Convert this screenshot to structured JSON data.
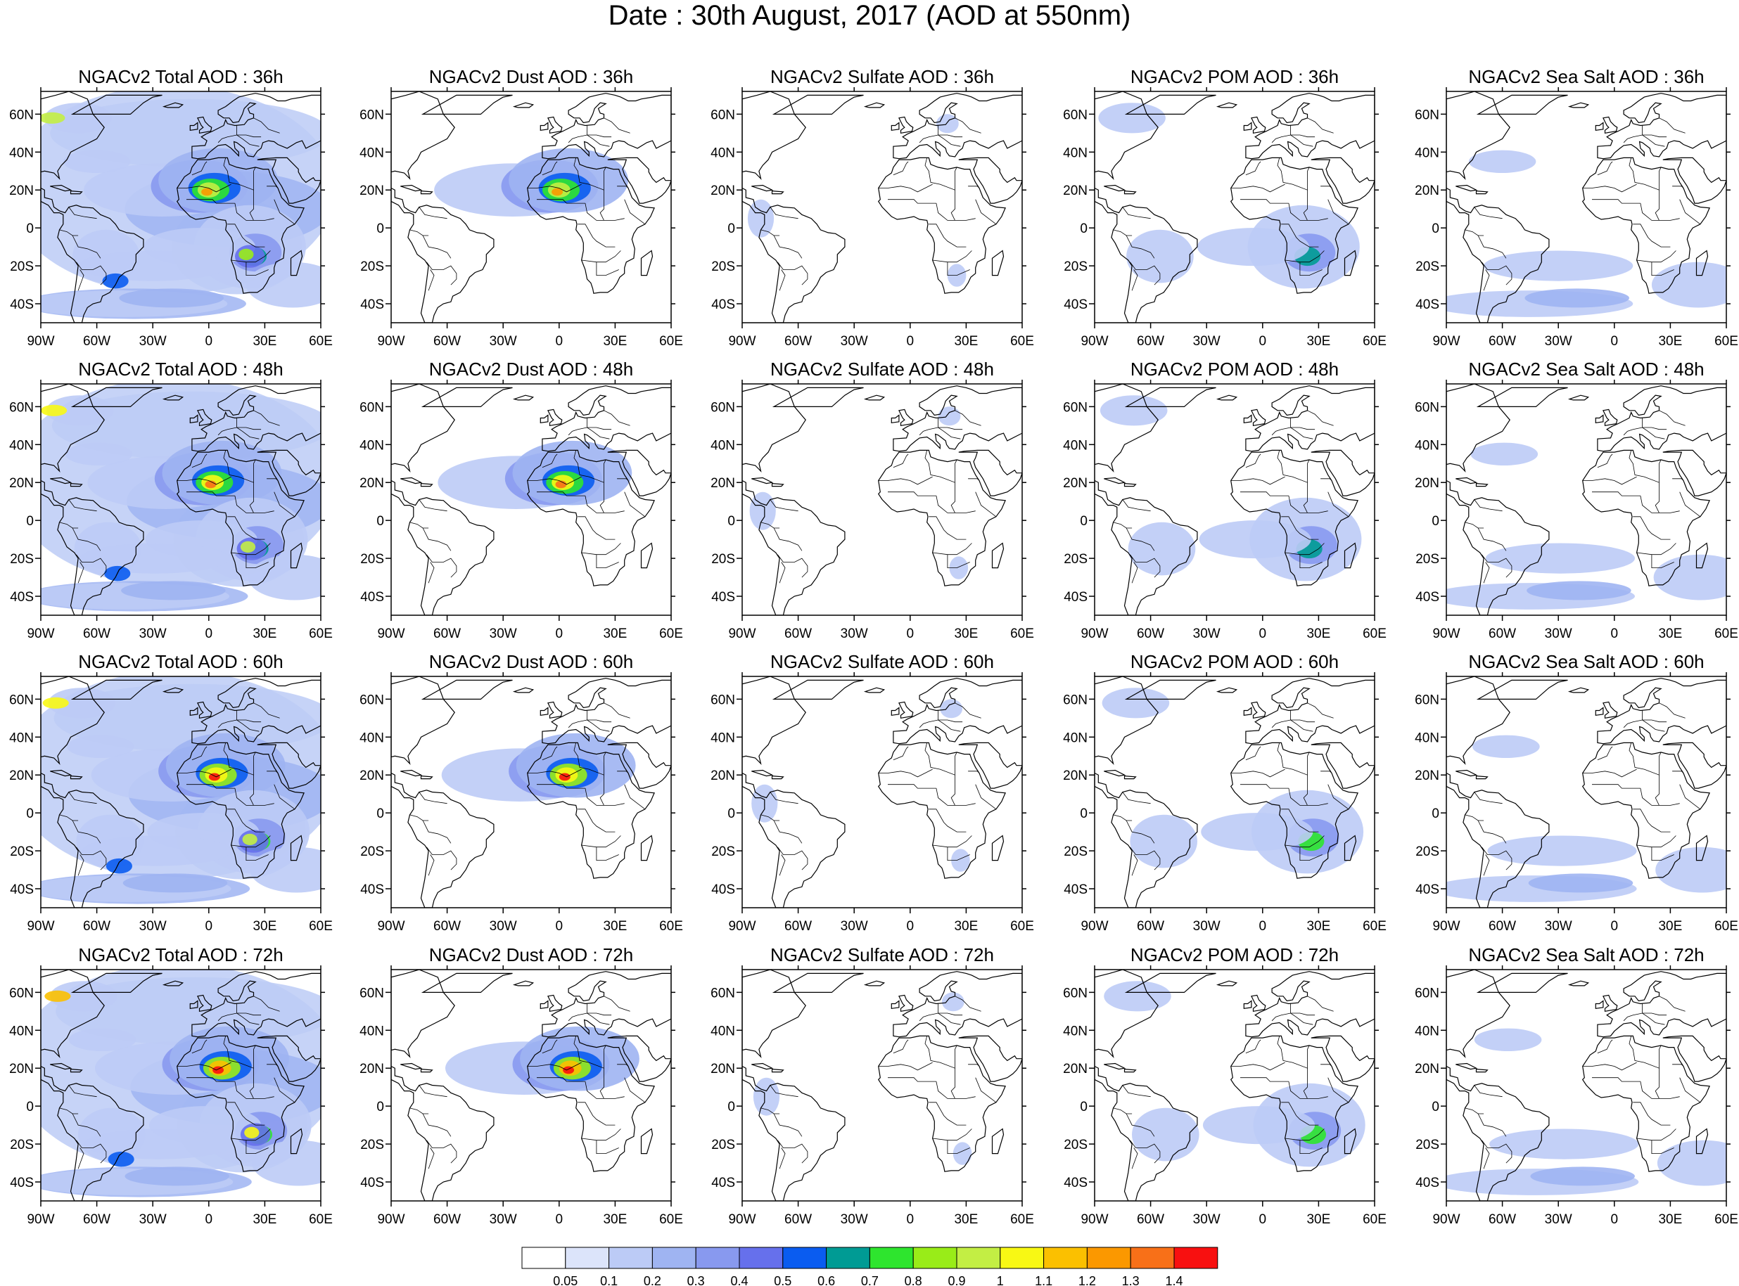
{
  "title": "Date : 30th August, 2017 (AOD at 550nm)",
  "lon_ticks": [
    "90W",
    "60W",
    "30W",
    "0",
    "30E",
    "60E"
  ],
  "lat_ticks": [
    "60N",
    "40N",
    "20N",
    "0",
    "20S",
    "40S"
  ],
  "colorbar": {
    "labels": [
      "0.05",
      "0.1",
      "0.2",
      "0.3",
      "0.4",
      "0.5",
      "0.6",
      "0.7",
      "0.8",
      "0.9",
      "1",
      "1.1",
      "1.2",
      "1.3",
      "1.4"
    ],
    "colors": [
      "#ffffff",
      "#dce4fa",
      "#bccbf6",
      "#9fb4f2",
      "#8899ef",
      "#6670ec",
      "#0a5cf0",
      "#009b94",
      "#2ee52e",
      "#99ec18",
      "#c3ee44",
      "#f8f814",
      "#fbc000",
      "#fb9800",
      "#f87018",
      "#f81010"
    ]
  },
  "panels": [
    {
      "title": "NGACv2 Total AOD : 36h"
    },
    {
      "title": "NGACv2 Dust AOD : 36h"
    },
    {
      "title": "NGACv2 Sulfate AOD : 36h"
    },
    {
      "title": "NGACv2 POM AOD : 36h"
    },
    {
      "title": "NGACv2 Sea Salt AOD : 36h"
    },
    {
      "title": "NGACv2 Total AOD : 48h"
    },
    {
      "title": "NGACv2 Dust AOD : 48h"
    },
    {
      "title": "NGACv2 Sulfate AOD : 48h"
    },
    {
      "title": "NGACv2 POM AOD : 48h"
    },
    {
      "title": "NGACv2 Sea Salt AOD : 48h"
    },
    {
      "title": "NGACv2 Total AOD : 60h"
    },
    {
      "title": "NGACv2 Dust AOD : 60h"
    },
    {
      "title": "NGACv2 Sulfate AOD : 60h"
    },
    {
      "title": "NGACv2 POM AOD : 60h"
    },
    {
      "title": "NGACv2 Sea Salt AOD : 60h"
    },
    {
      "title": "NGACv2 Total AOD : 72h"
    },
    {
      "title": "NGACv2 Dust AOD : 72h"
    },
    {
      "title": "NGACv2 Sulfate AOD : 72h"
    },
    {
      "title": "NGACv2 POM AOD : 72h"
    },
    {
      "title": "NGACv2 Sea Salt  AOD : 72h"
    }
  ]
}
